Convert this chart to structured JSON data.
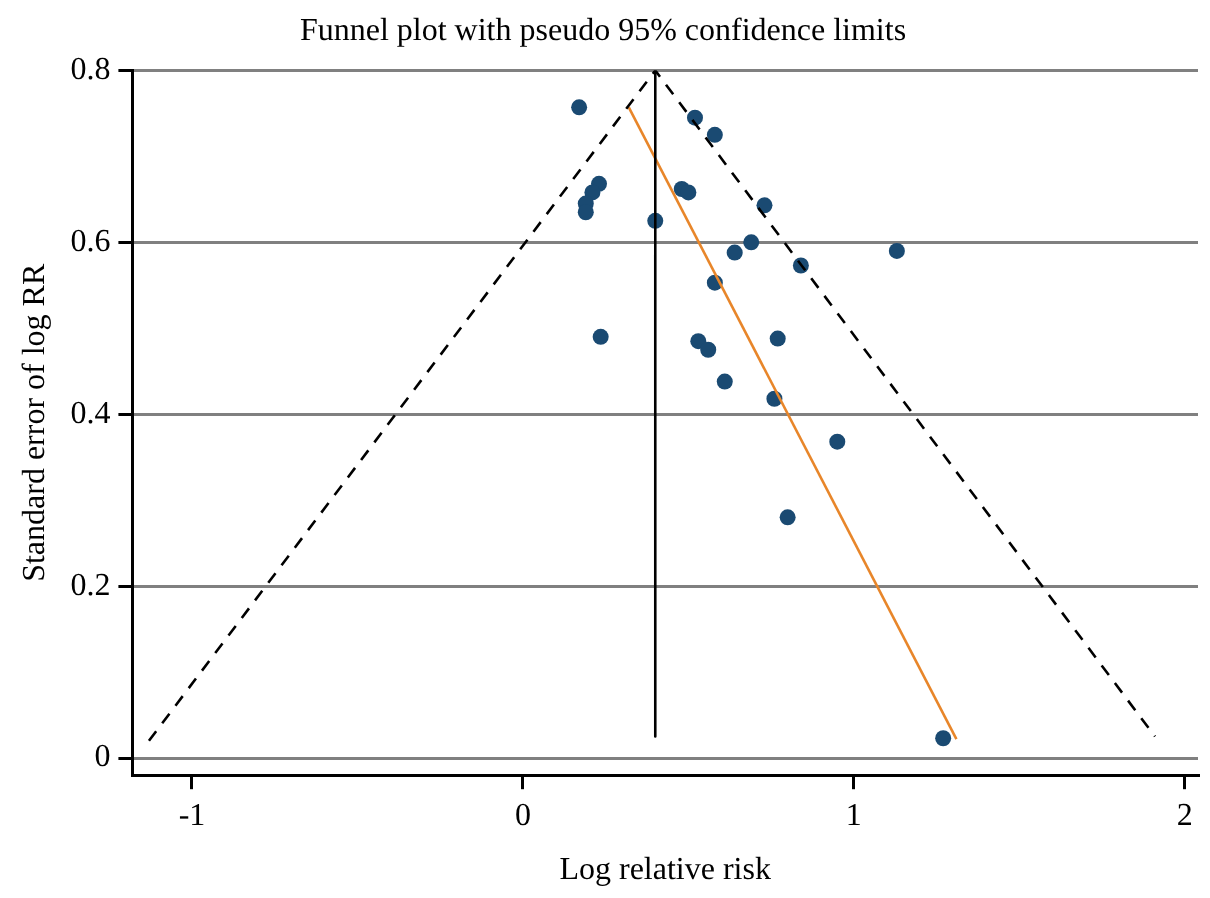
{
  "chart_data": {
    "type": "scatter",
    "title": "Funnel plot with pseudo 95% confidence limits",
    "xlabel": "Log relative risk",
    "ylabel": "Standard error of log RR",
    "xlim": [
      -1.18,
      2.04
    ],
    "xticks": [
      -1,
      0,
      1,
      2
    ],
    "ylim": [
      -0.02,
      0.8
    ],
    "yticks": [
      0,
      0.2,
      0.4,
      0.6,
      0.8
    ],
    "grid": "y",
    "legend": false,
    "series": [
      {
        "type": "line",
        "color": "#000000",
        "marker": "none",
        "line_style": "dashed",
        "x": [
          -1.13,
          0.4,
          1.91
        ],
        "values": [
          0.02,
          0.8,
          0.025
        ]
      },
      {
        "type": "line",
        "color": "#000000",
        "marker": "none",
        "line_style": "solid",
        "x": [
          0.4,
          0.4
        ],
        "values": [
          0.8,
          0.025
        ]
      },
      {
        "type": "line",
        "color": "#e8862a",
        "marker": "none",
        "line_style": "solid",
        "x": [
          0.32,
          1.31
        ],
        "values": [
          0.757,
          0.022
        ]
      },
      {
        "type": "scatter",
        "color": "#1a4a72",
        "marker": "circle",
        "x": [
          0.17,
          0.52,
          0.58,
          0.23,
          0.21,
          0.19,
          0.19,
          0.4,
          0.48,
          0.5,
          0.73,
          0.69,
          0.64,
          1.13,
          0.84,
          0.58,
          0.235,
          0.53,
          0.56,
          0.77,
          0.61,
          0.76,
          0.95,
          0.8,
          1.27
        ],
        "values": [
          0.757,
          0.745,
          0.725,
          0.668,
          0.658,
          0.645,
          0.635,
          0.625,
          0.662,
          0.658,
          0.643,
          0.6,
          0.588,
          0.59,
          0.573,
          0.553,
          0.49,
          0.485,
          0.475,
          0.488,
          0.438,
          0.418,
          0.368,
          0.28,
          0.023
        ]
      }
    ]
  }
}
